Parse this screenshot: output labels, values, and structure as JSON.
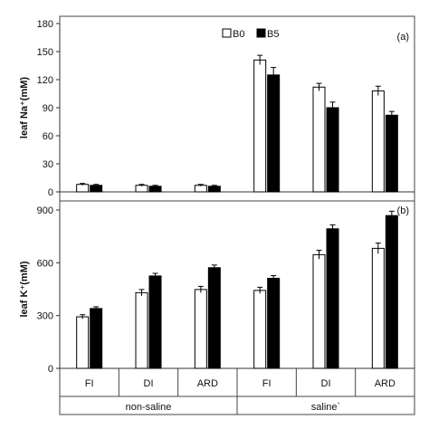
{
  "chart_data": [
    {
      "type": "bar",
      "panel_label": "(a)",
      "ylabel": "leaf Na⁺(mM)",
      "ylim": [
        0,
        180
      ],
      "yticks": [
        0,
        30,
        60,
        90,
        120,
        150,
        180
      ],
      "categories": [
        "FI",
        "DI",
        "ARD",
        "FI",
        "DI",
        "ARD"
      ],
      "groups": [
        "non-saline",
        "saline`"
      ],
      "legend_position": "top",
      "series": [
        {
          "name": "B0",
          "color": "#ffffff",
          "values": [
            8,
            7,
            7,
            141,
            112,
            108
          ],
          "errors": [
            1,
            1,
            1,
            5,
            4,
            5
          ]
        },
        {
          "name": "B5",
          "color": "#000000",
          "values": [
            7,
            6,
            6,
            125,
            90,
            82
          ],
          "errors": [
            1,
            1,
            1,
            8,
            6,
            4
          ]
        }
      ]
    },
    {
      "type": "bar",
      "panel_label": "(b)",
      "ylabel": "leaf K⁺(mM)",
      "ylim": [
        0,
        900
      ],
      "yticks": [
        0,
        300,
        600,
        900
      ],
      "categories": [
        "FI",
        "DI",
        "ARD",
        "FI",
        "DI",
        "ARD"
      ],
      "groups": [
        "non-saline",
        "saline`"
      ],
      "series": [
        {
          "name": "B0",
          "color": "#ffffff",
          "values": [
            293,
            430,
            448,
            443,
            646,
            682
          ],
          "errors": [
            12,
            18,
            18,
            18,
            25,
            30
          ]
        },
        {
          "name": "B5",
          "color": "#000000",
          "values": [
            340,
            525,
            572,
            512,
            793,
            868
          ],
          "errors": [
            10,
            15,
            15,
            15,
            22,
            25
          ]
        }
      ]
    }
  ]
}
